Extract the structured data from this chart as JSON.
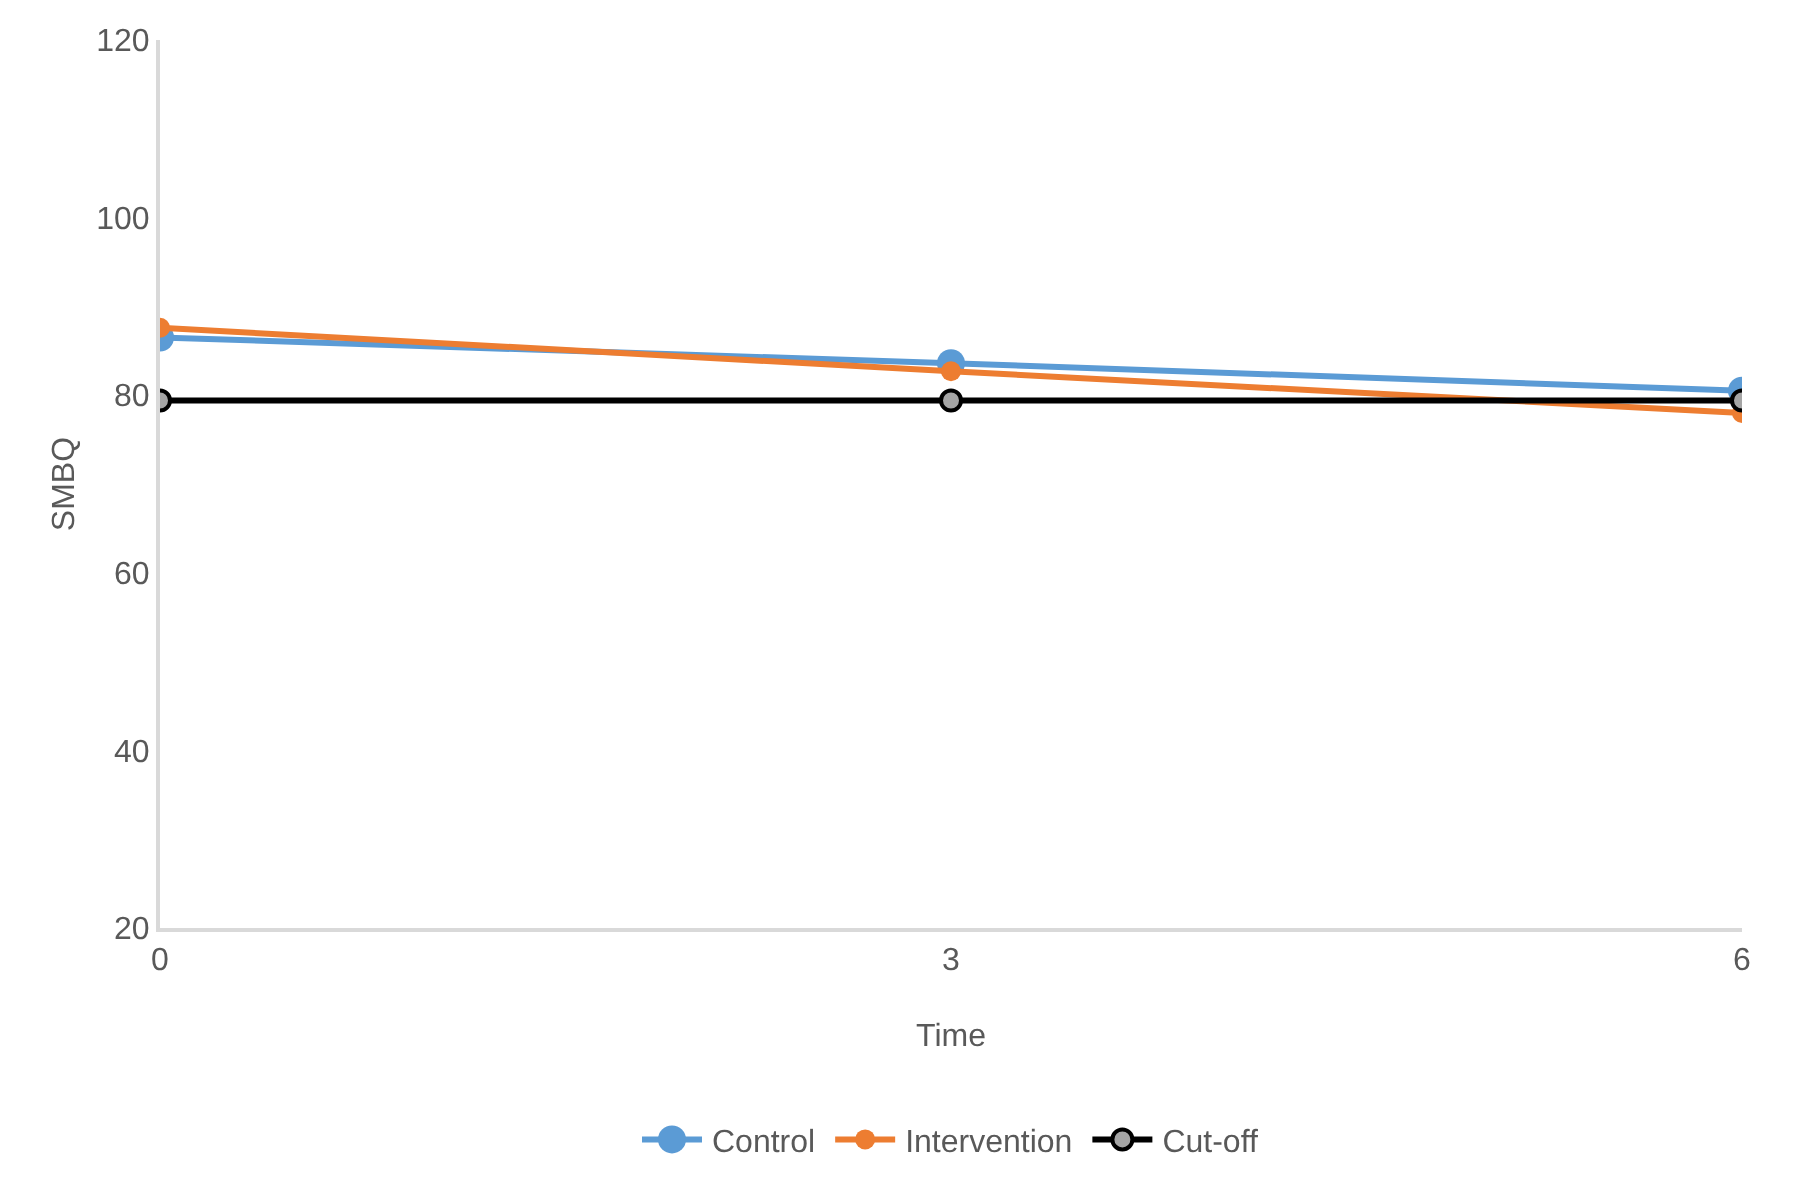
{
  "chart_data": {
    "type": "line",
    "xlabel": "Time",
    "ylabel": "SMBQ",
    "x": [
      0,
      3,
      6
    ],
    "xlim": [
      0,
      6
    ],
    "xticks": [
      0,
      3,
      6
    ],
    "ylim": [
      20,
      120
    ],
    "yticks": [
      20,
      40,
      60,
      80,
      100,
      120
    ],
    "grid": false,
    "legend": "bottom",
    "marker": "circle",
    "line_style": "solid",
    "series": [
      {
        "name": "Control",
        "color": "#5b9bd5",
        "values": [
          86.5,
          83.6,
          80.5
        ]
      },
      {
        "name": "Intervention",
        "color": "#ed7d31",
        "values": [
          87.6,
          82.7,
          78.0
        ]
      },
      {
        "name": "Cut-off",
        "color": "#000000",
        "values": [
          79.4,
          79.4,
          79.4
        ]
      }
    ]
  }
}
